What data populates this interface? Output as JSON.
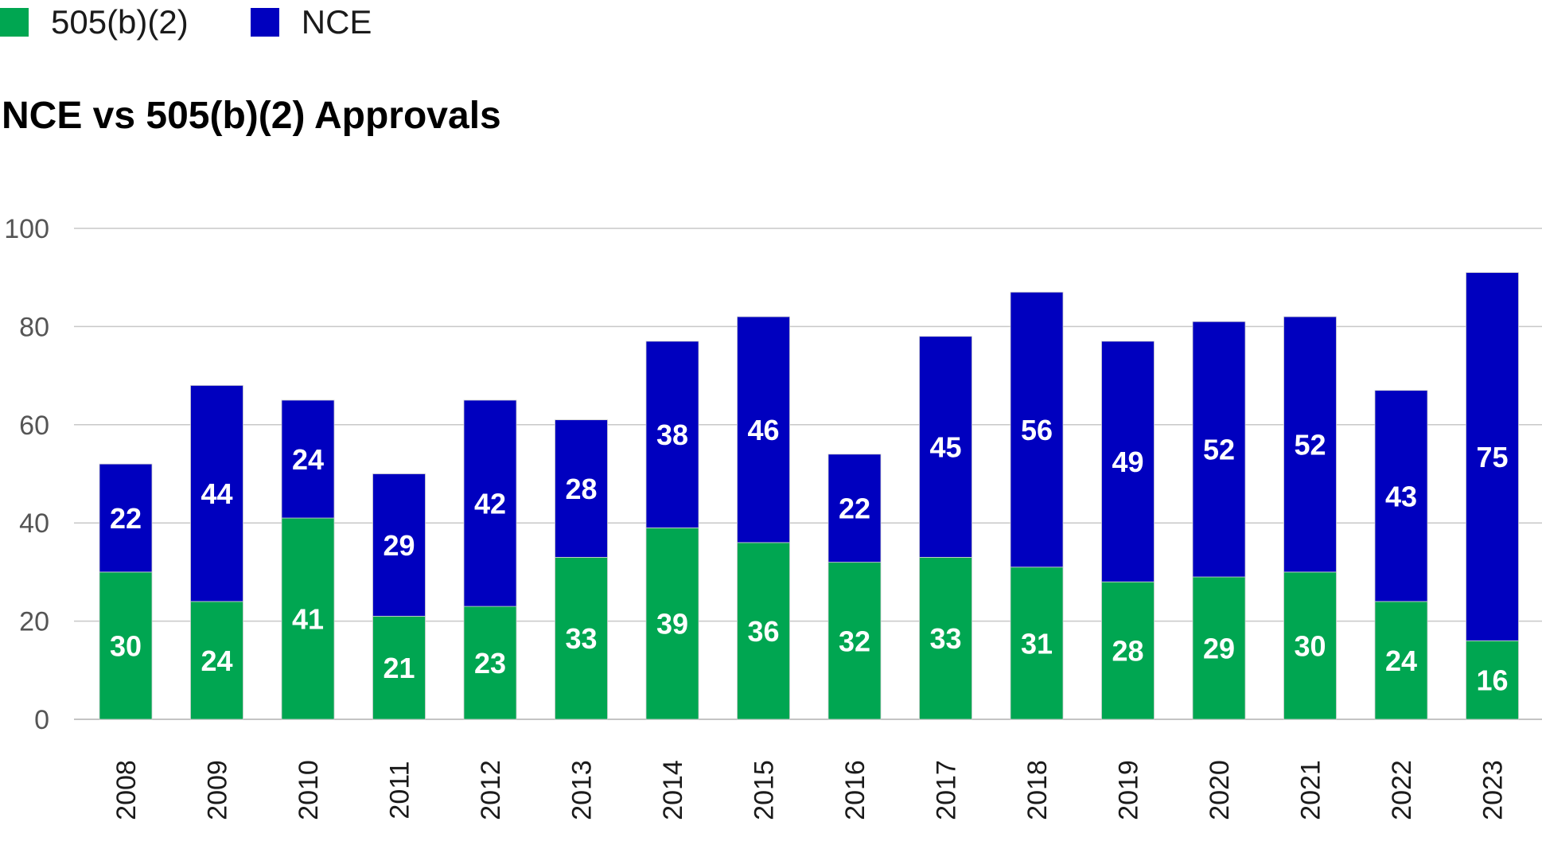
{
  "legend": {
    "items": [
      {
        "label": "505(b)(2)",
        "color": "#00a651"
      },
      {
        "label": "NCE",
        "color": "#0000bf"
      }
    ]
  },
  "chart_data": {
    "type": "bar",
    "stacked": true,
    "title": "NCE vs 505(b)(2) Approvals",
    "xlabel": "",
    "ylabel": "",
    "ylim": [
      0,
      100
    ],
    "yticks": [
      0,
      20,
      40,
      60,
      80,
      100
    ],
    "grid": true,
    "legend_position": "top-left",
    "categories": [
      "2008",
      "2009",
      "2010",
      "2011",
      "2012",
      "2013",
      "2014",
      "2015",
      "2016",
      "2017",
      "2018",
      "2019",
      "2020",
      "2021",
      "2022",
      "2023"
    ],
    "series": [
      {
        "name": "505(b)(2)",
        "color": "#00a651",
        "values": [
          30,
          24,
          41,
          21,
          23,
          33,
          39,
          36,
          32,
          33,
          31,
          28,
          29,
          30,
          24,
          16
        ]
      },
      {
        "name": "NCE",
        "color": "#0000bf",
        "values": [
          22,
          44,
          24,
          29,
          42,
          28,
          38,
          46,
          22,
          45,
          56,
          49,
          52,
          52,
          43,
          75
        ]
      }
    ]
  }
}
